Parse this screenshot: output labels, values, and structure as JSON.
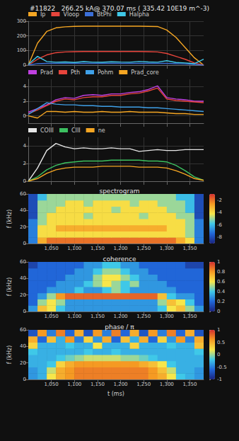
{
  "title": "#11822   266.25 kA@ 370.07 ms ( 335.42 10E19 m^-3)",
  "chart_data": [
    {
      "type": "line",
      "grid": true,
      "legend": "top",
      "tick_labels": "y",
      "x": [
        1000,
        1020,
        1040,
        1060,
        1080,
        1100,
        1120,
        1140,
        1160,
        1180,
        1200,
        1220,
        1240,
        1260,
        1280,
        1300,
        1320,
        1340,
        1360,
        1380
      ],
      "xlim": [
        1000,
        1380
      ],
      "xticks": [
        1050,
        1100,
        1150,
        1200,
        1250,
        1300,
        1350
      ],
      "ylim": [
        0,
        300
      ],
      "yticks": [
        0,
        100,
        200,
        300
      ],
      "series": [
        {
          "name": "Ip",
          "color": "#f5a623",
          "values": [
            0,
            150,
            230,
            255,
            262,
            265,
            266,
            266,
            266,
            266,
            266,
            266,
            266,
            265,
            264,
            240,
            190,
            120,
            50,
            0
          ]
        },
        {
          "name": "Vloop",
          "color": "#e8453c",
          "values": [
            0,
            40,
            70,
            85,
            90,
            92,
            93,
            93,
            93,
            93,
            93,
            93,
            93,
            92,
            90,
            80,
            60,
            40,
            15,
            0
          ]
        },
        {
          "name": "BtPhi",
          "color": "#3b6fd8",
          "values": [
            0,
            10,
            12,
            12,
            12,
            12,
            12,
            12,
            12,
            12,
            12,
            12,
            12,
            12,
            12,
            12,
            10,
            8,
            5,
            0
          ]
        },
        {
          "name": "Halpha",
          "color": "#3fc8e8",
          "values": [
            5,
            60,
            25,
            20,
            22,
            18,
            24,
            20,
            19,
            23,
            21,
            20,
            25,
            22,
            20,
            30,
            18,
            15,
            10,
            40
          ]
        }
      ]
    },
    {
      "type": "line",
      "grid": true,
      "legend": "top",
      "tick_labels": "y",
      "x": [
        1000,
        1020,
        1040,
        1060,
        1080,
        1100,
        1120,
        1140,
        1160,
        1180,
        1200,
        1220,
        1240,
        1260,
        1280,
        1300,
        1320,
        1340,
        1360,
        1380
      ],
      "xlim": [
        1000,
        1380
      ],
      "xticks": [
        1050,
        1100,
        1150,
        1200,
        1250,
        1300,
        1350
      ],
      "ylim": [
        -1,
        5
      ],
      "yticks": [
        0,
        2,
        4
      ],
      "series": [
        {
          "name": "Prad",
          "color": "#c040e0",
          "values": [
            0.5,
            1.0,
            1.5,
            2.2,
            2.5,
            2.4,
            2.8,
            2.9,
            2.8,
            3.0,
            3.0,
            3.2,
            3.3,
            3.6,
            4.1,
            2.5,
            2.3,
            2.2,
            2.0,
            2.0
          ]
        },
        {
          "name": "Pth",
          "color": "#e8453c",
          "values": [
            0.3,
            0.8,
            1.4,
            2.0,
            2.3,
            2.2,
            2.5,
            2.6,
            2.6,
            2.8,
            2.8,
            3.0,
            3.1,
            3.4,
            3.8,
            2.3,
            2.1,
            2.0,
            1.9,
            1.8
          ]
        },
        {
          "name": "Pohm",
          "color": "#3fa0e8",
          "values": [
            0.2,
            1.0,
            1.8,
            1.6,
            1.5,
            1.5,
            1.4,
            1.4,
            1.3,
            1.3,
            1.2,
            1.2,
            1.2,
            1.1,
            1.1,
            1.0,
            0.9,
            0.8,
            0.7,
            0.6
          ]
        },
        {
          "name": "Prad_core",
          "color": "#f5a623",
          "values": [
            0.0,
            -0.3,
            0.6,
            0.6,
            0.5,
            0.6,
            0.5,
            0.5,
            0.6,
            0.5,
            0.5,
            0.6,
            0.5,
            0.5,
            0.5,
            0.4,
            0.3,
            0.3,
            0.2,
            0.2
          ]
        }
      ]
    },
    {
      "type": "line",
      "grid": true,
      "legend": "top",
      "tick_labels": "y",
      "x": [
        1000,
        1020,
        1040,
        1060,
        1080,
        1100,
        1120,
        1140,
        1160,
        1180,
        1200,
        1220,
        1240,
        1260,
        1280,
        1300,
        1320,
        1340,
        1360,
        1380
      ],
      "xlim": [
        1000,
        1380
      ],
      "xticks": [
        1050,
        1100,
        1150,
        1200,
        1250,
        1300,
        1350
      ],
      "ylim": [
        0,
        5
      ],
      "yticks": [
        0,
        2,
        4
      ],
      "series": [
        {
          "name": "COIII",
          "color": "#e6e6e6",
          "values": [
            0,
            1.5,
            3.5,
            4.3,
            3.9,
            3.7,
            3.8,
            3.7,
            3.7,
            3.8,
            3.7,
            3.7,
            3.4,
            3.5,
            3.6,
            3.5,
            3.5,
            3.6,
            3.6,
            3.6
          ]
        },
        {
          "name": "CIII",
          "color": "#3cc060",
          "values": [
            0,
            0.5,
            1.3,
            1.8,
            2.1,
            2.2,
            2.3,
            2.3,
            2.3,
            2.4,
            2.4,
            2.4,
            2.4,
            2.3,
            2.3,
            2.2,
            1.8,
            1.2,
            0.5,
            0.1
          ]
        },
        {
          "name": "ne",
          "color": "#f5a623",
          "values": [
            0,
            0.3,
            0.9,
            1.3,
            1.5,
            1.6,
            1.6,
            1.6,
            1.7,
            1.7,
            1.7,
            1.7,
            1.6,
            1.6,
            1.6,
            1.5,
            1.2,
            0.8,
            0.3,
            0.1
          ]
        }
      ]
    },
    {
      "type": "heatmap",
      "title": "spectrogram",
      "ylabel": "f (kHz)",
      "xlim": [
        1000,
        1380
      ],
      "xticks": [
        1050,
        1100,
        1150,
        1200,
        1250,
        1300,
        1350
      ],
      "ylim": [
        0,
        60
      ],
      "yticks": [
        0,
        20,
        40,
        60
      ],
      "x_edges": [
        1000,
        1020,
        1040,
        1060,
        1080,
        1100,
        1120,
        1140,
        1160,
        1180,
        1200,
        1220,
        1240,
        1260,
        1280,
        1300,
        1320,
        1340,
        1360,
        1380
      ],
      "y_edges": [
        0,
        7.5,
        15,
        22.5,
        30,
        37.5,
        45,
        52.5,
        60
      ],
      "colorbar_range": [
        -9,
        -1
      ],
      "colorbar_ticks": [
        -8,
        -6,
        -4,
        -2
      ],
      "cells": [
        [
          -7,
          -3,
          -2,
          -2,
          -2,
          -2,
          -2,
          -2,
          -2,
          -2,
          -2,
          -2,
          -2,
          -2,
          -2,
          -2,
          -3,
          -4,
          -7
        ],
        [
          -7,
          -4,
          -4,
          -4,
          -4,
          -4,
          -4,
          -4,
          -4,
          -4,
          -4,
          -4,
          -4,
          -4,
          -4,
          -4,
          -4,
          -5,
          -7
        ],
        [
          -7,
          -4,
          -4,
          -3,
          -3,
          -3,
          -3,
          -3,
          -3,
          -3,
          -3,
          -3,
          -3,
          -3,
          -3,
          -4,
          -4,
          -5,
          -7
        ],
        [
          -7,
          -5,
          -4,
          -4,
          -4,
          -4,
          -4,
          -4,
          -4,
          -4,
          -4,
          -4,
          -4,
          -4,
          -4,
          -4,
          -4,
          -5,
          -7
        ],
        [
          -8,
          -5,
          -4,
          -4,
          -4,
          -4,
          -5,
          -4,
          -4,
          -4,
          -4,
          -4,
          -5,
          -4,
          -4,
          -4,
          -5,
          -5,
          -8
        ],
        [
          -8,
          -5,
          -5,
          -4,
          -4,
          -4,
          -4,
          -4,
          -4,
          -5,
          -4,
          -4,
          -4,
          -4,
          -4,
          -5,
          -5,
          -6,
          -8
        ],
        [
          -8,
          -5,
          -5,
          -5,
          -4,
          -4,
          -5,
          -4,
          -4,
          -4,
          -4,
          -5,
          -4,
          -4,
          -5,
          -5,
          -5,
          -6,
          -8
        ],
        [
          -8,
          -6,
          -5,
          -5,
          -5,
          -5,
          -5,
          -5,
          -5,
          -5,
          -5,
          -5,
          -5,
          -5,
          -5,
          -5,
          -6,
          -6,
          -8
        ]
      ]
    },
    {
      "type": "heatmap",
      "title": "coherence",
      "ylabel": "f (kHz)",
      "xlim": [
        1000,
        1380
      ],
      "xticks": [
        1050,
        1100,
        1150,
        1200,
        1250,
        1300,
        1350
      ],
      "ylim": [
        0,
        60
      ],
      "yticks": [
        0,
        20,
        40,
        60
      ],
      "x_edges": [
        1000,
        1020,
        1040,
        1060,
        1080,
        1100,
        1120,
        1140,
        1160,
        1180,
        1200,
        1220,
        1240,
        1260,
        1280,
        1300,
        1320,
        1340,
        1360,
        1380
      ],
      "y_edges": [
        0,
        7.5,
        15,
        22.5,
        30,
        37.5,
        45,
        52.5,
        60
      ],
      "colorbar_range": [
        0,
        1
      ],
      "colorbar_ticks": [
        0,
        0.2,
        0.4,
        0.6,
        0.8,
        1
      ],
      "cells": [
        [
          0.3,
          0.7,
          0.6,
          0.4,
          0.3,
          0.3,
          0.3,
          0.3,
          0.3,
          0.3,
          0.3,
          0.3,
          0.3,
          0.3,
          0.4,
          0.6,
          0.7,
          0.5,
          0.3
        ],
        [
          0.2,
          0.5,
          0.6,
          0.5,
          0.3,
          0.3,
          0.3,
          0.3,
          0.3,
          0.3,
          0.3,
          0.3,
          0.3,
          0.3,
          0.5,
          0.7,
          0.6,
          0.4,
          0.2
        ],
        [
          0.2,
          0.3,
          0.5,
          0.8,
          0.9,
          0.9,
          0.9,
          0.9,
          0.9,
          0.9,
          0.9,
          0.9,
          0.9,
          0.9,
          0.7,
          0.4,
          0.3,
          0.3,
          0.2
        ],
        [
          0.2,
          0.2,
          0.3,
          0.3,
          0.3,
          0.4,
          0.3,
          0.3,
          0.4,
          0.5,
          0.4,
          0.3,
          0.3,
          0.3,
          0.3,
          0.3,
          0.2,
          0.2,
          0.2
        ],
        [
          0.2,
          0.2,
          0.2,
          0.3,
          0.3,
          0.3,
          0.4,
          0.5,
          0.6,
          0.5,
          0.4,
          0.5,
          0.3,
          0.3,
          0.3,
          0.2,
          0.2,
          0.2,
          0.2
        ],
        [
          0.2,
          0.2,
          0.2,
          0.2,
          0.3,
          0.3,
          0.3,
          0.5,
          0.6,
          0.6,
          0.5,
          0.4,
          0.3,
          0.3,
          0.2,
          0.2,
          0.2,
          0.2,
          0.2
        ],
        [
          0.2,
          0.2,
          0.2,
          0.2,
          0.2,
          0.3,
          0.3,
          0.4,
          0.5,
          0.5,
          0.4,
          0.3,
          0.3,
          0.2,
          0.2,
          0.2,
          0.2,
          0.2,
          0.2
        ],
        [
          0.1,
          0.2,
          0.2,
          0.2,
          0.2,
          0.2,
          0.3,
          0.3,
          0.4,
          0.4,
          0.3,
          0.3,
          0.2,
          0.2,
          0.2,
          0.2,
          0.2,
          0.1,
          0.1
        ]
      ]
    },
    {
      "type": "heatmap",
      "title": "phase / π",
      "ylabel": "f (kHz)",
      "xlabel": "t (ms)",
      "xlim": [
        1000,
        1380
      ],
      "xticks": [
        1050,
        1100,
        1150,
        1200,
        1250,
        1300,
        1350
      ],
      "ylim": [
        0,
        60
      ],
      "yticks": [
        0,
        20,
        40,
        60
      ],
      "x_edges": [
        1000,
        1020,
        1040,
        1060,
        1080,
        1100,
        1120,
        1140,
        1160,
        1180,
        1200,
        1220,
        1240,
        1260,
        1280,
        1300,
        1320,
        1340,
        1360,
        1380
      ],
      "y_edges": [
        0,
        7.5,
        15,
        22.5,
        30,
        37.5,
        45,
        52.5,
        60
      ],
      "colorbar_range": [
        -1,
        1
      ],
      "colorbar_ticks": [
        -1,
        -0.5,
        0,
        0.5,
        1
      ],
      "cells": [
        [
          -0.4,
          -0.3,
          0.2,
          0.5,
          0.6,
          0.7,
          0.7,
          0.7,
          0.7,
          0.7,
          0.7,
          0.7,
          0.7,
          0.6,
          0.5,
          0.2,
          -0.2,
          -0.3,
          -0.4
        ],
        [
          -0.4,
          -0.3,
          0.1,
          0.5,
          0.6,
          0.7,
          0.7,
          0.7,
          0.7,
          0.7,
          0.7,
          0.7,
          0.7,
          0.6,
          0.4,
          0.1,
          -0.3,
          -0.3,
          -0.4
        ],
        [
          -0.3,
          -0.3,
          -0.2,
          0.3,
          0.5,
          0.6,
          0.6,
          0.6,
          0.6,
          0.6,
          0.6,
          0.6,
          0.5,
          0.4,
          0.2,
          -0.2,
          -0.3,
          -0.3,
          -0.3
        ],
        [
          -0.3,
          -0.3,
          -0.3,
          -0.2,
          -0.1,
          0.0,
          0.1,
          0.1,
          0.1,
          0.1,
          0.0,
          0.0,
          -0.1,
          -0.2,
          -0.3,
          -0.3,
          -0.3,
          -0.3,
          -0.3
        ],
        [
          -0.2,
          -0.3,
          -0.3,
          -0.3,
          -0.3,
          -0.3,
          -0.2,
          -0.3,
          -0.3,
          -0.2,
          -0.3,
          -0.3,
          -0.3,
          -0.3,
          -0.3,
          -0.3,
          -0.3,
          -0.3,
          -0.2
        ],
        [
          0.3,
          -0.3,
          -0.3,
          -0.3,
          -0.2,
          -0.3,
          -0.3,
          0.2,
          -0.3,
          -0.3,
          -0.3,
          0.3,
          -0.3,
          -0.3,
          -0.3,
          -0.2,
          -0.3,
          -0.3,
          0.4
        ],
        [
          0.5,
          -0.6,
          0.4,
          -0.3,
          0.6,
          -0.5,
          0.3,
          -0.4,
          0.5,
          -0.6,
          0.4,
          -0.3,
          0.5,
          -0.6,
          0.3,
          -0.4,
          0.6,
          -0.5,
          0.5
        ],
        [
          -0.7,
          0.6,
          -0.5,
          0.7,
          -0.6,
          0.5,
          -0.7,
          0.6,
          -0.5,
          0.7,
          -0.6,
          0.5,
          -0.7,
          0.6,
          -0.5,
          0.7,
          -0.6,
          0.5,
          -0.7
        ]
      ]
    }
  ]
}
